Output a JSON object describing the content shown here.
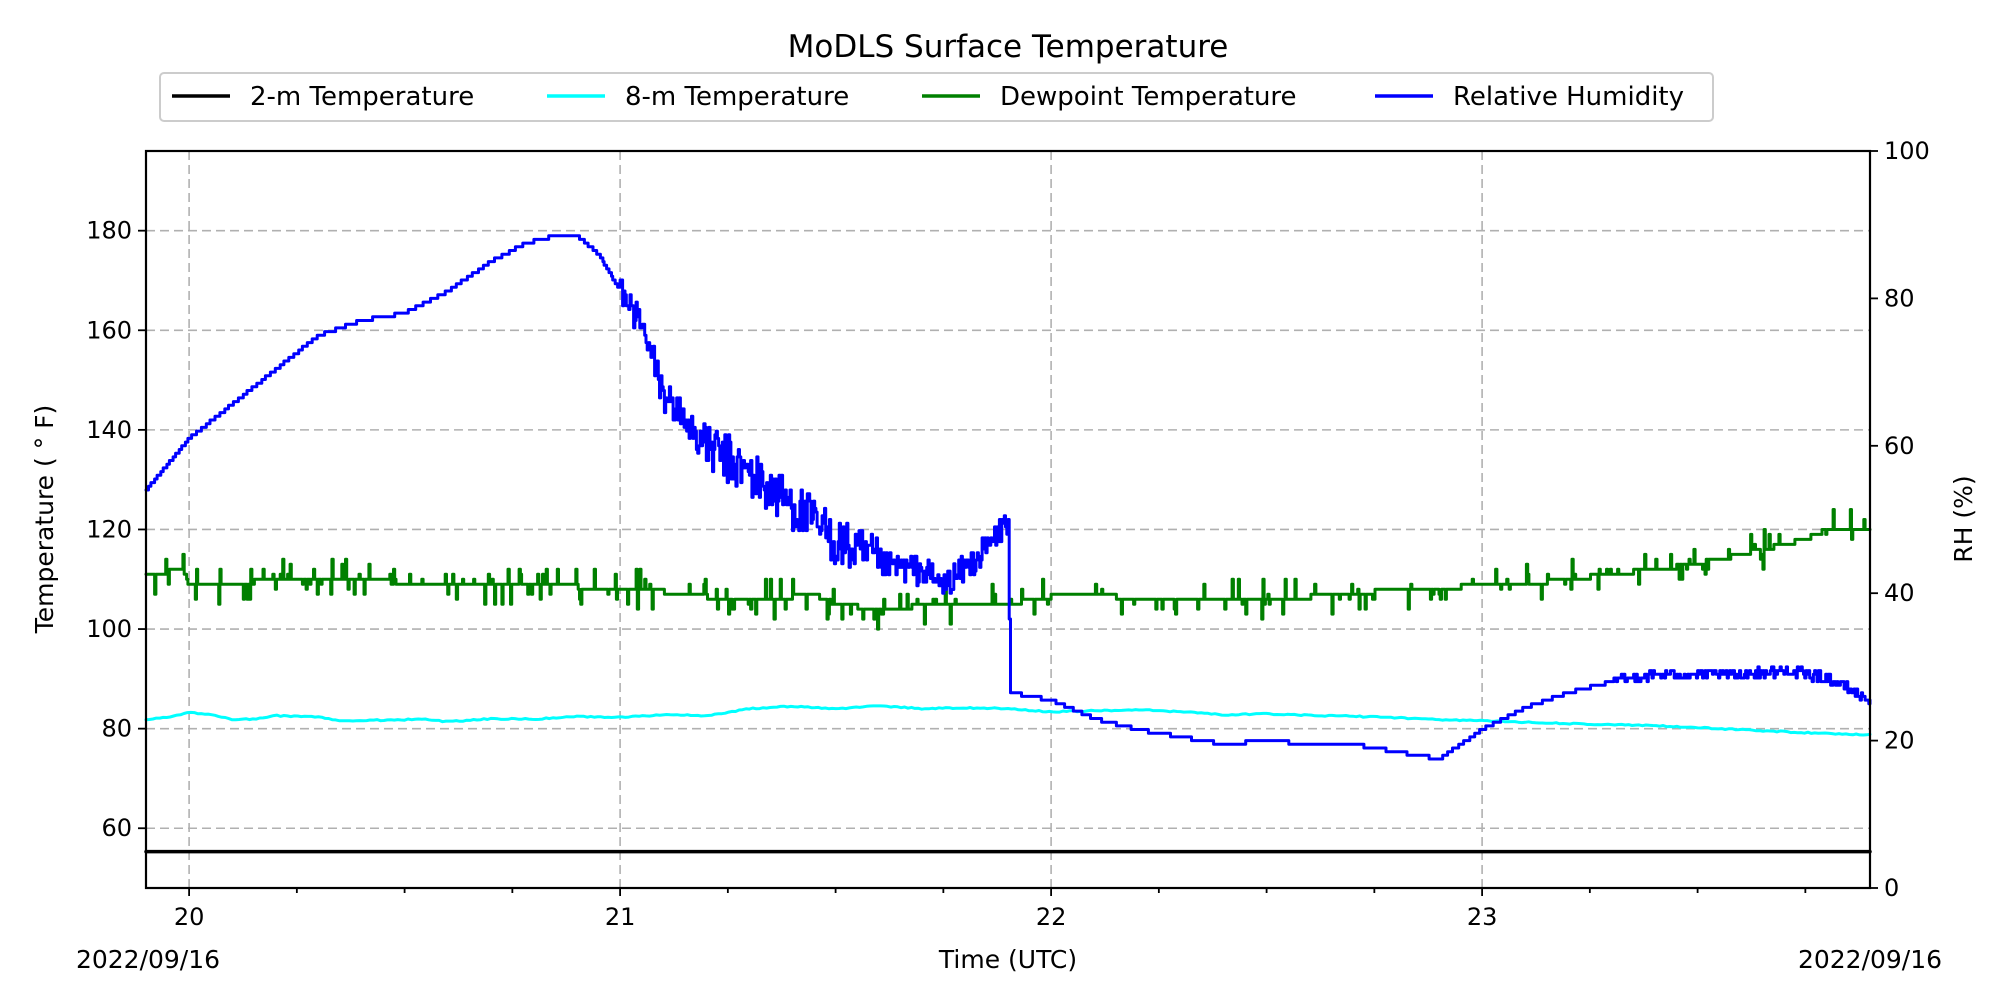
{
  "chart_data": {
    "type": "line",
    "title": "MoDLS Surface Temperature",
    "xlabel": "Time (UTC)",
    "ylabel_left": "Temperature ($^\\circ$F)",
    "ylabel_left_display": "Temperature ( ° F)",
    "ylabel_right": "RH (%)",
    "x_domain": [
      19.9,
      23.9
    ],
    "ylim_left": [
      48,
      196
    ],
    "ylim_right": [
      0,
      100
    ],
    "x_ticks": [
      20,
      21,
      22,
      23
    ],
    "x_tick_labels": [
      "20",
      "21",
      "22",
      "23"
    ],
    "x_minor_step": 0.25,
    "y_ticks_left": [
      60,
      80,
      100,
      120,
      140,
      160,
      180
    ],
    "y_ticks_right": [
      0,
      20,
      40,
      60,
      80,
      100
    ],
    "date_start_label": "2022/09/16",
    "date_end_label": "2022/09/16",
    "grid": true,
    "legend_position": "top-center",
    "series": [
      {
        "name": "2-m Temperature",
        "color": "#000000",
        "axis": "left",
        "points": [
          [
            19.9,
            55.3
          ],
          [
            23.9,
            55.3
          ]
        ]
      },
      {
        "name": "8-m Temperature",
        "color": "#00ffff",
        "axis": "left",
        "points": [
          [
            19.9,
            81.8
          ],
          [
            19.97,
            82.6
          ],
          [
            20.0,
            83.3
          ],
          [
            20.05,
            82.8
          ],
          [
            20.1,
            81.9
          ],
          [
            20.15,
            81.9
          ],
          [
            20.2,
            82.6
          ],
          [
            20.3,
            82.4
          ],
          [
            20.35,
            81.6
          ],
          [
            20.45,
            81.7
          ],
          [
            20.55,
            81.9
          ],
          [
            20.6,
            81.4
          ],
          [
            20.7,
            82.0
          ],
          [
            20.8,
            81.9
          ],
          [
            20.9,
            82.4
          ],
          [
            21.0,
            82.3
          ],
          [
            21.1,
            82.8
          ],
          [
            21.2,
            82.6
          ],
          [
            21.3,
            84.0
          ],
          [
            21.4,
            84.5
          ],
          [
            21.5,
            84.0
          ],
          [
            21.6,
            84.6
          ],
          [
            21.7,
            84.0
          ],
          [
            21.8,
            84.2
          ],
          [
            21.9,
            84.0
          ],
          [
            22.0,
            83.4
          ],
          [
            22.1,
            83.6
          ],
          [
            22.2,
            83.8
          ],
          [
            22.3,
            83.4
          ],
          [
            22.4,
            82.8
          ],
          [
            22.5,
            83.0
          ],
          [
            22.6,
            82.7
          ],
          [
            22.7,
            82.5
          ],
          [
            22.8,
            82.2
          ],
          [
            22.9,
            81.8
          ],
          [
            23.0,
            81.6
          ],
          [
            23.1,
            81.3
          ],
          [
            23.2,
            81.0
          ],
          [
            23.3,
            80.8
          ],
          [
            23.4,
            80.6
          ],
          [
            23.5,
            80.2
          ],
          [
            23.6,
            79.8
          ],
          [
            23.7,
            79.4
          ],
          [
            23.8,
            79.0
          ],
          [
            23.9,
            78.8
          ]
        ]
      },
      {
        "name": "Dewpoint Temperature",
        "color": "#008000",
        "axis": "left",
        "step": true,
        "noise_amp": 1.2,
        "points": [
          [
            19.9,
            110.5
          ],
          [
            19.98,
            112
          ],
          [
            20.0,
            108.5
          ],
          [
            20.1,
            109
          ],
          [
            20.2,
            110
          ],
          [
            20.3,
            110.5
          ],
          [
            20.45,
            110
          ],
          [
            20.5,
            108.5
          ],
          [
            20.7,
            108.5
          ],
          [
            20.9,
            108.5
          ],
          [
            21.05,
            108
          ],
          [
            21.2,
            106.5
          ],
          [
            21.35,
            106
          ],
          [
            21.45,
            107
          ],
          [
            21.5,
            105
          ],
          [
            21.6,
            104
          ],
          [
            21.75,
            105
          ],
          [
            21.9,
            105
          ],
          [
            22.0,
            106.5
          ],
          [
            22.15,
            106.5
          ],
          [
            22.25,
            105.5
          ],
          [
            22.3,
            106.5
          ],
          [
            22.5,
            106
          ],
          [
            22.7,
            107
          ],
          [
            22.8,
            108
          ],
          [
            22.95,
            108.5
          ],
          [
            23.1,
            109
          ],
          [
            23.3,
            111
          ],
          [
            23.45,
            112.5
          ],
          [
            23.55,
            114
          ],
          [
            23.65,
            116
          ],
          [
            23.75,
            118
          ],
          [
            23.8,
            120
          ],
          [
            23.9,
            120
          ]
        ]
      },
      {
        "name": "Relative Humidity",
        "color": "#0000ff",
        "axis": "right",
        "step": true,
        "points": [
          [
            19.9,
            54
          ],
          [
            20.0,
            61
          ],
          [
            20.15,
            68
          ],
          [
            20.3,
            75
          ],
          [
            20.4,
            77
          ],
          [
            20.5,
            78
          ],
          [
            20.6,
            81
          ],
          [
            20.7,
            85
          ],
          [
            20.78,
            87.5
          ],
          [
            20.85,
            88.5
          ],
          [
            20.9,
            88.5
          ],
          [
            20.95,
            86
          ],
          [
            21.0,
            81
          ],
          [
            21.05,
            76
          ],
          [
            21.1,
            67
          ],
          [
            21.2,
            60
          ],
          [
            21.3,
            56
          ],
          [
            21.4,
            52
          ],
          [
            21.5,
            47
          ],
          [
            21.6,
            44
          ],
          [
            21.7,
            43
          ],
          [
            21.75,
            41
          ],
          [
            21.85,
            46
          ],
          [
            21.9,
            50
          ],
          [
            21.905,
            26.5
          ],
          [
            22.0,
            25.5
          ],
          [
            22.1,
            23
          ],
          [
            22.2,
            21.5
          ],
          [
            22.3,
            20.5
          ],
          [
            22.4,
            19.5
          ],
          [
            22.5,
            20
          ],
          [
            22.6,
            19.5
          ],
          [
            22.7,
            19.5
          ],
          [
            22.8,
            18.5
          ],
          [
            22.9,
            17.5
          ],
          [
            23.0,
            21.5
          ],
          [
            23.1,
            24.5
          ],
          [
            23.2,
            26.5
          ],
          [
            23.3,
            28
          ],
          [
            23.4,
            29
          ],
          [
            23.5,
            29
          ],
          [
            23.6,
            29
          ],
          [
            23.7,
            29.5
          ],
          [
            23.8,
            28.5
          ],
          [
            23.9,
            25.5
          ]
        ],
        "noise": [
          {
            "x0": 21.0,
            "x1": 21.2,
            "amp": 2.5
          },
          {
            "x0": 21.2,
            "x1": 21.6,
            "amp": 3.5
          },
          {
            "x0": 21.6,
            "x1": 21.9,
            "amp": 2.0
          },
          {
            "x0": 23.3,
            "x1": 23.9,
            "amp": 0.7
          }
        ]
      }
    ]
  }
}
